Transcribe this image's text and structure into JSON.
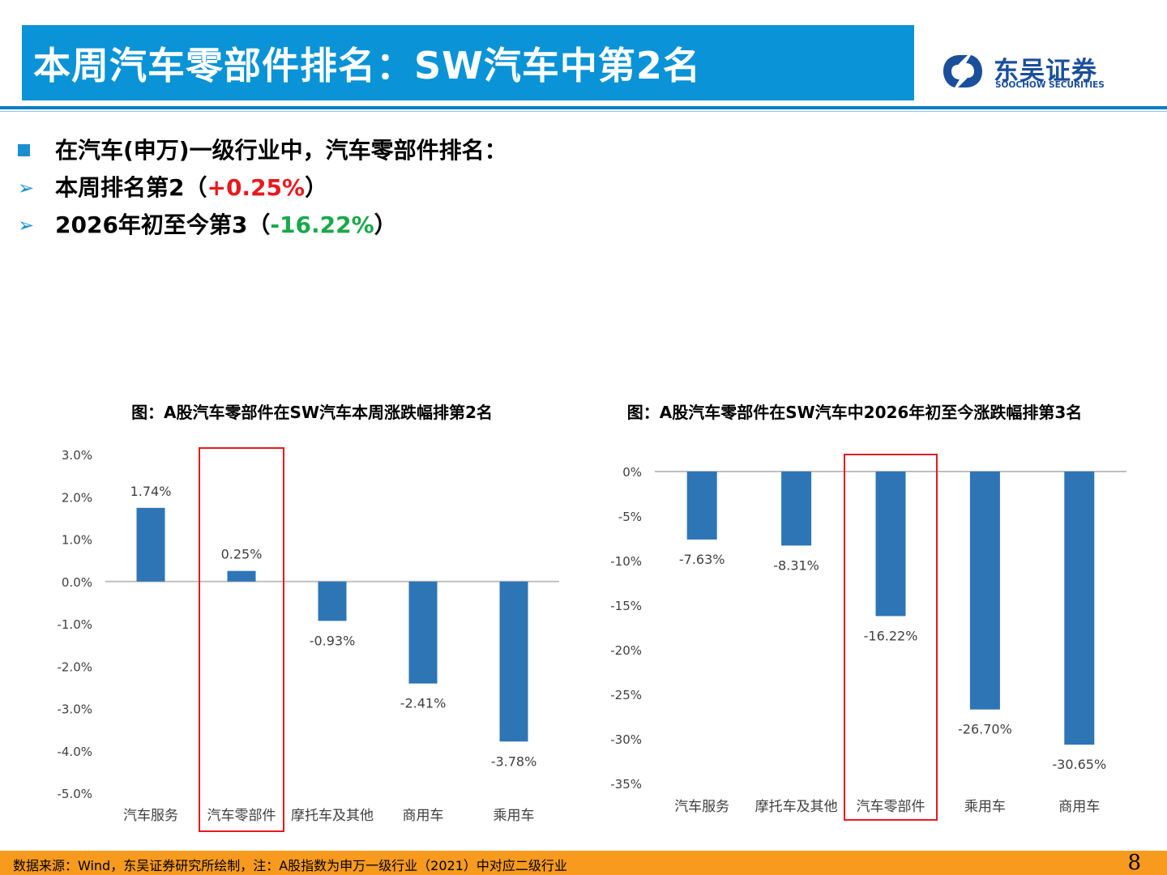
{
  "header": {
    "title": "本周汽车零部件排名：SW汽车中第2名"
  },
  "logo": {
    "name_cn": "东吴证券",
    "name_en": "SOOCHOW SECURITIES"
  },
  "bullets": {
    "intro": "在汽车(申万)一级行业中，汽车零部件排名：",
    "week_prefix": "本周排名第2（",
    "week_value": "+0.25%",
    "week_suffix": "）",
    "ytd_prefix": "2026年初至今第3（",
    "ytd_value": "-16.22%",
    "ytd_suffix": "）"
  },
  "colors": {
    "title_bar": "#0a93d6",
    "bar": "#2e75b6",
    "highlight_box": "#e8191e",
    "positive": "#e8191e",
    "negative": "#1aa84a",
    "footer": "#f79a1e"
  },
  "chart_data": [
    {
      "type": "bar",
      "title": "图：A股汽车零部件在SW汽车本周涨跌幅排第2名",
      "categories": [
        "汽车服务",
        "汽车零部件",
        "摩托车及其他",
        "商用车",
        "乘用车"
      ],
      "values": [
        1.74,
        0.25,
        -0.93,
        -2.41,
        -3.78
      ],
      "value_labels": [
        "1.74%",
        "0.25%",
        "-0.93%",
        "-2.41%",
        "-3.78%"
      ],
      "y_ticks": [
        "3.0%",
        "2.0%",
        "1.0%",
        "0.0%",
        "-1.0%",
        "-2.0%",
        "-3.0%",
        "-4.0%",
        "-5.0%"
      ],
      "ylim": [
        -5,
        3
      ],
      "highlight": "汽车零部件"
    },
    {
      "type": "bar",
      "title": "图：A股汽车零部件在SW汽车中2026年初至今涨跌幅排第3名",
      "categories": [
        "汽车服务",
        "摩托车及其他",
        "汽车零部件",
        "乘用车",
        "商用车"
      ],
      "values": [
        -7.63,
        -8.31,
        -16.22,
        -26.7,
        -30.65
      ],
      "value_labels": [
        "-7.63%",
        "-8.31%",
        "-16.22%",
        "-26.70%",
        "-30.65%"
      ],
      "y_ticks": [
        "0%",
        "-5%",
        "-10%",
        "-15%",
        "-20%",
        "-25%",
        "-30%",
        "-35%"
      ],
      "ylim": [
        -35,
        0
      ],
      "highlight": "汽车零部件"
    }
  ],
  "footer": {
    "source": "数据来源：Wind，东吴证券研究所绘制，注：A股指数为申万一级行业（2021）中对应二级行业",
    "page": "8"
  }
}
